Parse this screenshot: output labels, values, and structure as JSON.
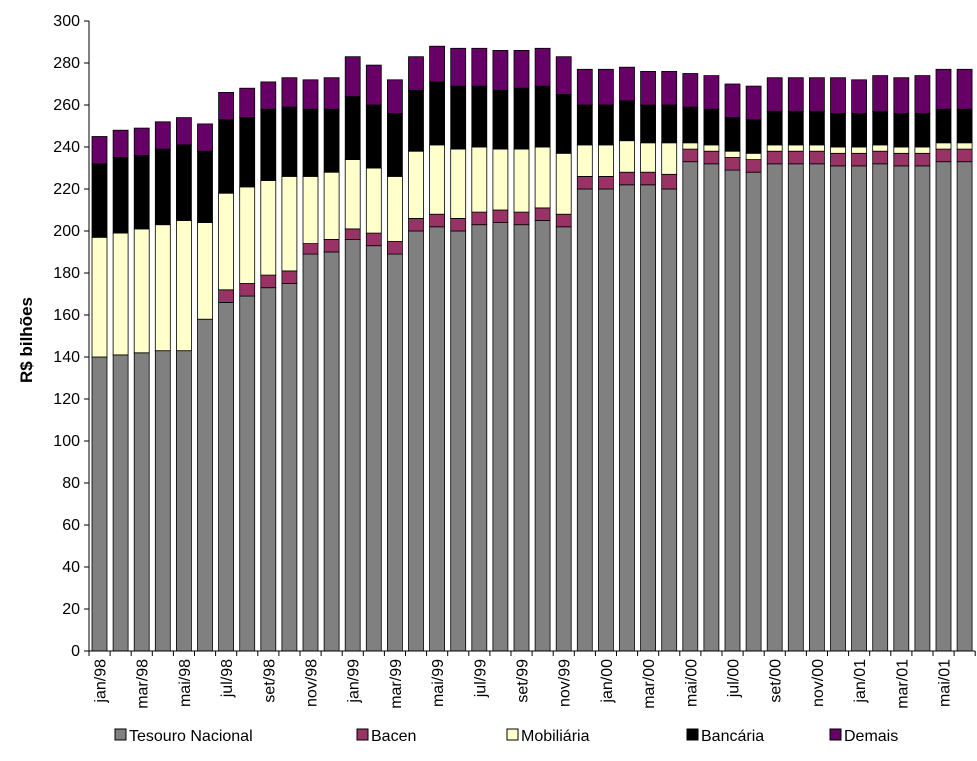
{
  "chart_data": {
    "type": "bar",
    "stacked": true,
    "ylabel": "R$ bilhões",
    "xlabel": "",
    "ylim": [
      0,
      300
    ],
    "yticks": [
      0,
      20,
      40,
      60,
      80,
      100,
      120,
      140,
      160,
      180,
      200,
      220,
      240,
      260,
      280,
      300
    ],
    "grid": false,
    "legend_position": "bottom",
    "categories": [
      "jan/98",
      "fev/98",
      "mar/98",
      "abr/98",
      "mai/98",
      "jun/98",
      "jul/98",
      "ago/98",
      "set/98",
      "out/98",
      "nov/98",
      "dez/98",
      "jan/99",
      "fev/99",
      "mar/99",
      "abr/99",
      "mai/99",
      "jun/99",
      "jul/99",
      "ago/99",
      "set/99",
      "out/99",
      "nov/99",
      "dez/99",
      "jan/00",
      "fev/00",
      "mar/00",
      "abr/00",
      "mai/00",
      "jun/00",
      "jul/00",
      "ago/00",
      "set/00",
      "out/00",
      "nov/00",
      "dez/00",
      "jan/01",
      "fev/01",
      "mar/01",
      "abr/01",
      "mai/01",
      "jun/01"
    ],
    "tick_labels": [
      "jan/98",
      "mar/98",
      "mai/98",
      "jul/98",
      "set/98",
      "nov/98",
      "jan/99",
      "mar/99",
      "mai/99",
      "jul/99",
      "set/99",
      "nov/99",
      "jan/00",
      "mar/00",
      "mai/00",
      "jul/00",
      "set/00",
      "nov/00",
      "jan/01",
      "mar/01",
      "mai/01"
    ],
    "series": [
      {
        "name": "Tesouro Nacional",
        "color": "#808080",
        "values": [
          140,
          141,
          142,
          143,
          143,
          158,
          166,
          169,
          173,
          175,
          189,
          190,
          196,
          193,
          189,
          200,
          202,
          200,
          203,
          204,
          203,
          205,
          202,
          220,
          220,
          222,
          222,
          220,
          233,
          232,
          229,
          228,
          232,
          232,
          232,
          231,
          231,
          232,
          231,
          231,
          233,
          233
        ]
      },
      {
        "name": "Bacen",
        "color": "#993366",
        "values": [
          0,
          0,
          0,
          0,
          0,
          0,
          6,
          6,
          6,
          6,
          5,
          6,
          5,
          6,
          6,
          6,
          6,
          6,
          6,
          6,
          6,
          6,
          6,
          6,
          6,
          6,
          6,
          7,
          6,
          6,
          6,
          6,
          6,
          6,
          6,
          6,
          6,
          6,
          6,
          6,
          6,
          6
        ]
      },
      {
        "name": "Mobiliária",
        "color": "#ffffcc",
        "values": [
          57,
          58,
          59,
          60,
          62,
          46,
          46,
          46,
          45,
          45,
          32,
          32,
          33,
          31,
          31,
          32,
          33,
          33,
          31,
          29,
          30,
          29,
          29,
          15,
          15,
          15,
          14,
          15,
          3,
          3,
          3,
          3,
          3,
          3,
          3,
          3,
          3,
          3,
          3,
          3,
          3,
          3
        ]
      },
      {
        "name": "Bancária",
        "color": "#000000",
        "values": [
          35,
          36,
          35,
          36,
          36,
          34,
          35,
          33,
          34,
          33,
          32,
          30,
          30,
          30,
          30,
          29,
          30,
          30,
          29,
          28,
          29,
          29,
          28,
          19,
          19,
          19,
          18,
          18,
          17,
          17,
          16,
          16,
          16,
          16,
          16,
          16,
          16,
          16,
          16,
          16,
          16,
          16
        ]
      },
      {
        "name": "Demais",
        "color": "#660066",
        "values": [
          13,
          13,
          13,
          13,
          13,
          13,
          13,
          14,
          13,
          14,
          14,
          15,
          19,
          19,
          16,
          16,
          17,
          18,
          18,
          19,
          18,
          18,
          18,
          17,
          17,
          16,
          16,
          16,
          16,
          16,
          16,
          16,
          16,
          16,
          16,
          17,
          16,
          17,
          17,
          18,
          19,
          19
        ]
      }
    ]
  }
}
